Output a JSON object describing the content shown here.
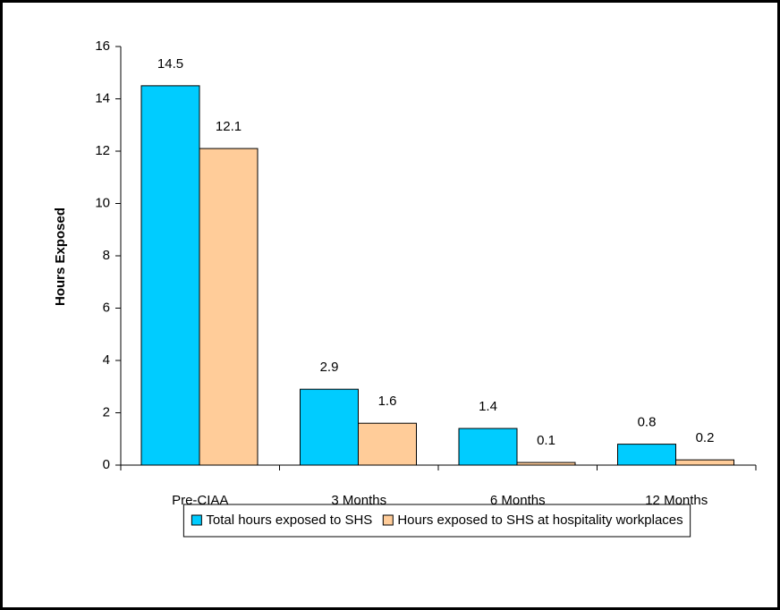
{
  "chart_data": {
    "type": "bar",
    "y_label": "Hours Exposed",
    "categories": [
      "Pre-CIAA",
      "3 Months",
      "6 Months",
      "12 Months"
    ],
    "series": [
      {
        "name": "Total hours exposed to SHS",
        "color": "#00ccff",
        "values": [
          14.5,
          2.9,
          1.4,
          0.8
        ]
      },
      {
        "name": "Hours exposed to SHS at hospitality workplaces",
        "color": "#ffcc99",
        "values": [
          12.1,
          1.6,
          0.1,
          0.2
        ]
      }
    ],
    "ylim": [
      0,
      16
    ],
    "yticks": [
      0,
      2,
      4,
      6,
      8,
      10,
      12,
      14,
      16
    ],
    "grid": false,
    "legend": "bottom",
    "data_labels": true
  }
}
